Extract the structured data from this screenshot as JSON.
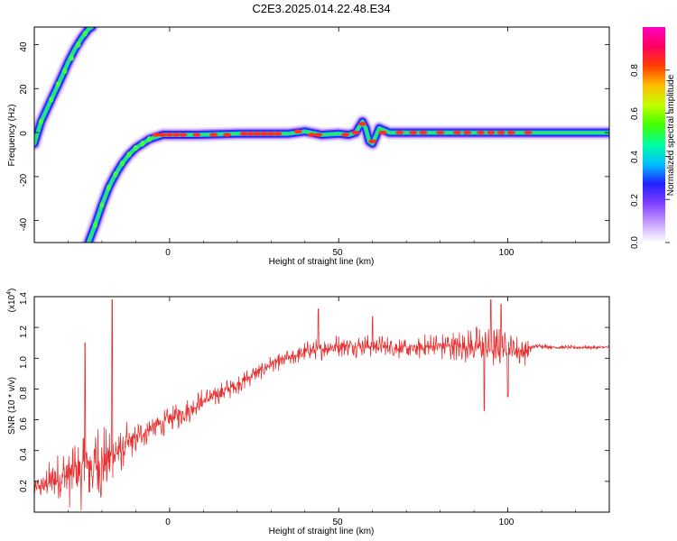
{
  "figure_title": "C2E3.2025.014.22.48.E34",
  "chart_data": [
    {
      "type": "heatmap",
      "title": "C2E3.2025.014.22.48.E34",
      "xlabel": "Height of straight line (km)",
      "ylabel": "Frequency (Hz)",
      "xlim": [
        -40,
        130
      ],
      "ylim": [
        -50,
        48
      ],
      "xticks": [
        0,
        50,
        100
      ],
      "yticks": [
        -40,
        -20,
        0,
        20,
        40
      ],
      "colorbar": {
        "label": "Normalized spectral amplitude",
        "range": [
          0,
          1
        ],
        "ticks": [
          0.0,
          0.2,
          0.4,
          0.6,
          0.8
        ],
        "tick_labels": [
          "0.0",
          "0.2",
          "0.4",
          "0.6",
          "0.8"
        ],
        "colormap": [
          "#ffffff",
          "#c8a0ff",
          "#8040ff",
          "#2020ff",
          "#00c0ff",
          "#00ffa0",
          "#40ff00",
          "#c0ff00",
          "#ffc000",
          "#ff4000",
          "#ff0060",
          "#ff00c0"
        ]
      },
      "ridges": [
        {
          "x": [
            -40,
            -38,
            -35,
            -32,
            -30,
            -28,
            -26,
            -24,
            -23
          ],
          "y": [
            -5,
            5,
            15,
            25,
            32,
            38,
            43,
            47,
            48
          ]
        },
        {
          "x": [
            -24,
            -22,
            -20,
            -18,
            -16,
            -14,
            -12,
            -10,
            -8,
            -6,
            -4,
            -2,
            0,
            8,
            20,
            35,
            40,
            45,
            50,
            53,
            55,
            57,
            58,
            59,
            60,
            62,
            65,
            80,
            100,
            130
          ],
          "y": [
            -50,
            -42,
            -33,
            -25,
            -19,
            -14,
            -10,
            -7,
            -5,
            -3,
            -2,
            -1,
            -1,
            -1,
            -0.5,
            -0.5,
            0.5,
            -1,
            -0.5,
            -1,
            0,
            5,
            2,
            -4,
            -5,
            2,
            0,
            0,
            0,
            0
          ]
        }
      ]
    },
    {
      "type": "line",
      "xlabel": "Height of straight line (km)",
      "ylabel": "SNR (10 * v/v)",
      "y_multiplier": "(x10",
      "y_multiplier_exp": "4",
      "xlim": [
        -40,
        130
      ],
      "ylim": [
        0,
        1.4
      ],
      "xticks": [
        0,
        50,
        100
      ],
      "yticks": [
        0.2,
        0.4,
        0.6,
        0.8,
        1.0,
        1.2,
        1.4
      ],
      "line_color": "#e83030",
      "envelope": {
        "x": [
          -40,
          -35,
          -30,
          -25,
          -20,
          -15,
          -10,
          -5,
          0,
          5,
          10,
          20,
          30,
          40,
          50,
          60,
          70,
          80,
          90,
          95,
          100,
          105,
          108,
          115,
          130
        ],
        "mid": [
          0.15,
          0.2,
          0.24,
          0.28,
          0.32,
          0.4,
          0.48,
          0.55,
          0.6,
          0.66,
          0.72,
          0.83,
          0.96,
          1.04,
          1.08,
          1.08,
          1.06,
          1.08,
          1.08,
          1.06,
          1.06,
          1.04,
          1.08,
          1.07,
          1.07
        ],
        "amp": [
          0.06,
          0.16,
          0.22,
          0.3,
          0.3,
          0.18,
          0.12,
          0.1,
          0.1,
          0.1,
          0.09,
          0.07,
          0.06,
          0.07,
          0.08,
          0.08,
          0.08,
          0.1,
          0.14,
          0.18,
          0.12,
          0.1,
          0.02,
          0.015,
          0.015
        ]
      },
      "spikes": [
        [
          -17,
          1.38
        ],
        [
          -25,
          1.1
        ],
        [
          44,
          1.32
        ],
        [
          60,
          1.27
        ],
        [
          95,
          1.38
        ],
        [
          98,
          1.35
        ],
        [
          93,
          0.66
        ],
        [
          100,
          0.75
        ]
      ]
    }
  ],
  "axes": {
    "x_tick_labels": [
      "0",
      "50",
      "100"
    ],
    "top_y_tick_labels": [
      "-40",
      "-20",
      "0",
      "20",
      "40"
    ],
    "bottom_y_tick_labels": [
      "0.2",
      "0.4",
      "0.6",
      "0.8",
      "1.0",
      "1.2",
      "1.4"
    ]
  }
}
